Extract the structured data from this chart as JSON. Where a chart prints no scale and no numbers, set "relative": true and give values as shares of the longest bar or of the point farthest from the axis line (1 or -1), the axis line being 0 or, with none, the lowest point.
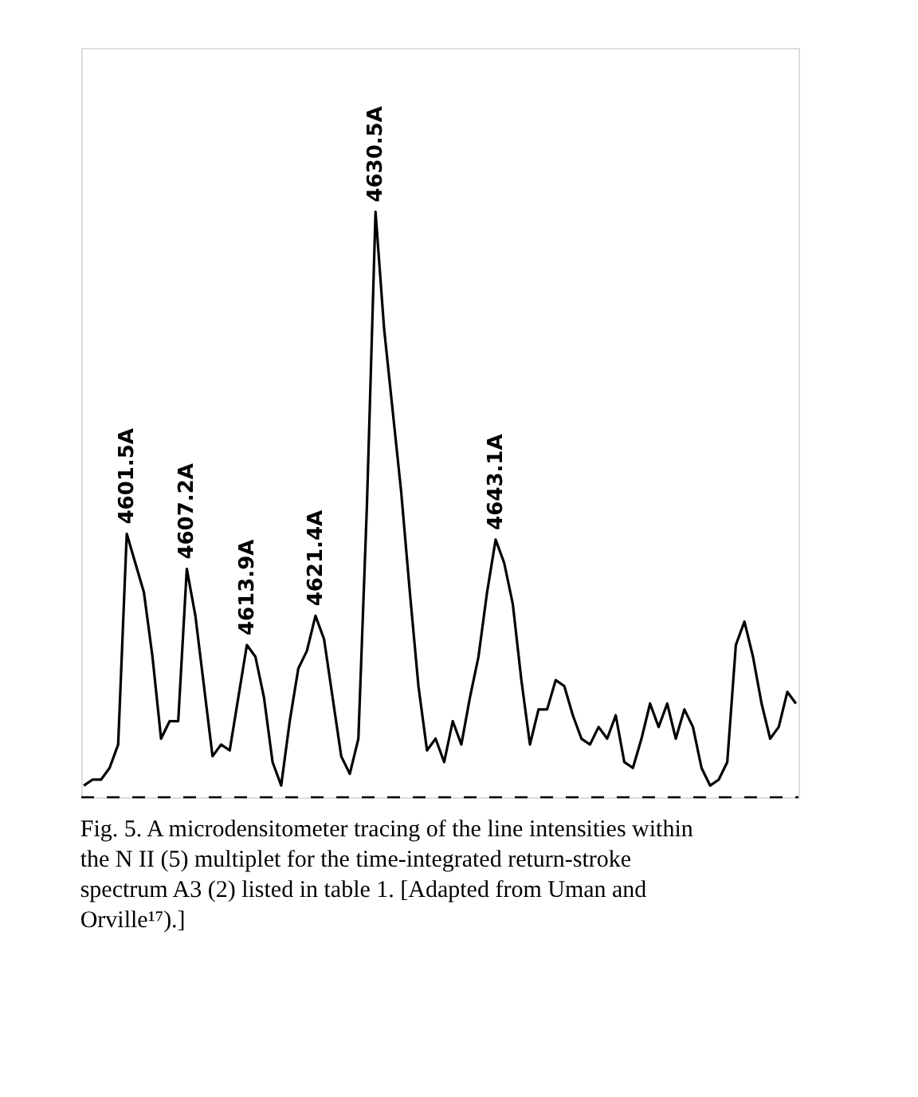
{
  "chart_data": {
    "type": "line",
    "relative": true,
    "tick_labels": false,
    "line_style": "solid",
    "marker": "none",
    "categories": [
      null,
      null,
      null,
      null,
      null,
      null,
      null,
      null,
      null,
      null,
      null,
      null,
      null,
      null,
      null,
      null,
      null,
      null,
      null,
      null,
      null,
      null,
      null,
      null,
      null,
      null,
      null,
      null,
      null,
      null,
      null,
      null,
      null,
      null,
      null,
      null,
      null,
      null,
      null,
      null,
      null,
      null,
      null,
      null,
      null,
      null,
      null,
      null,
      null,
      null,
      null,
      null,
      null,
      null,
      null,
      null,
      null,
      null,
      null,
      null,
      null,
      null,
      null,
      null,
      null,
      null,
      null,
      null,
      null,
      null,
      null,
      null,
      null,
      null,
      null,
      null,
      null,
      null,
      null,
      null,
      null,
      null,
      null,
      null
    ],
    "series": [
      {
        "color": "#000000",
        "values": [
          0.02,
          0.03,
          0.03,
          0.05,
          0.09,
          0.45,
          0.4,
          0.35,
          0.24,
          0.1,
          0.13,
          0.13,
          0.39,
          0.31,
          0.19,
          0.07,
          0.09,
          0.08,
          0.17,
          0.26,
          0.24,
          0.17,
          0.06,
          0.02,
          0.13,
          0.22,
          0.25,
          0.31,
          0.27,
          0.17,
          0.07,
          0.04,
          0.1,
          0.5,
          1,
          0.8,
          0.66,
          0.52,
          0.35,
          0.19,
          0.08,
          0.1,
          0.06,
          0.13,
          0.09,
          0.17,
          0.24,
          0.35,
          0.44,
          0.4,
          0.33,
          0.2,
          0.09,
          0.15,
          0.15,
          0.2,
          0.19,
          0.14,
          0.1,
          0.09,
          0.12,
          0.1,
          0.14,
          0.06,
          0.05,
          0.1,
          0.16,
          0.12,
          0.16,
          0.1,
          0.15,
          0.12,
          0.05,
          0.02,
          0.03,
          0.06,
          0.26,
          0.3,
          0.24,
          0.16,
          0.1,
          0.12,
          0.18,
          0.16
        ]
      }
    ],
    "ref_lines": [
      {
        "axis": "y",
        "value": 0,
        "color": "#000000",
        "line_style": "dashed"
      }
    ],
    "annotations": [
      {
        "text": "4601.5A"
      },
      {
        "text": "4607.2A"
      },
      {
        "text": "4613.9A"
      },
      {
        "text": "4621.4A"
      },
      {
        "text": "4630.5A"
      },
      {
        "text": "4643.1A"
      },
      "Fig. 5. A microdensitometer tracing of the line intensities within the N II (5) multiplet for the time-integrated return-stroke spectrum A3 (2) listed in table 1. [Adapted from Uman and Orville¹⁷).]"
    ]
  }
}
